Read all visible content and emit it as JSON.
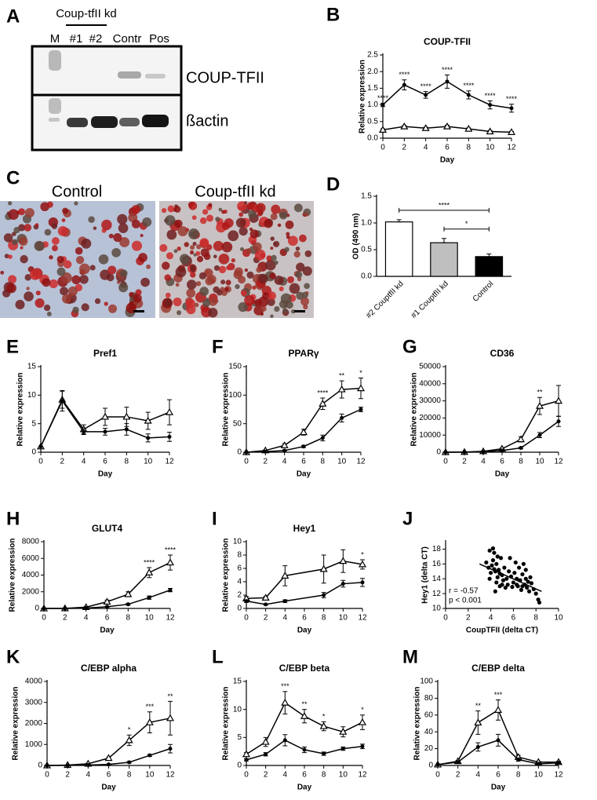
{
  "blot": {
    "panel": "A",
    "group_label": "Coup-tfII kd",
    "lanes": [
      "M",
      "#1",
      "#2",
      "Contr",
      "Pos"
    ],
    "bands": [
      "COUP-TFII",
      "ßactin"
    ]
  },
  "micrographs": {
    "panel": "C",
    "labels": [
      "Control",
      "Coup-tfII kd"
    ]
  },
  "chart_data": [
    {
      "type": "line",
      "panel": "B",
      "title": "COUP-TFII",
      "xlabel": "Day",
      "ylabel": "Relative expression",
      "x": [
        0,
        2,
        4,
        6,
        8,
        10,
        12
      ],
      "xlim": [
        0,
        12
      ],
      "xticks": [
        0,
        2,
        4,
        6,
        8,
        10,
        12
      ],
      "ylim": [
        0,
        2.5
      ],
      "yticks": [
        {
          "value": 0,
          "label": "0.0"
        },
        0.5,
        {
          "value": 1,
          "label": "1.0"
        },
        1.5,
        {
          "value": 2,
          "label": "2.0"
        },
        2.5
      ],
      "series": [
        {
          "marker": "circle",
          "color": "#000000",
          "values": [
            1.0,
            1.6,
            1.3,
            1.7,
            1.3,
            1.0,
            0.9
          ],
          "errors": [
            0.05,
            0.15,
            0.1,
            0.2,
            0.12,
            0.12,
            0.12
          ]
        },
        {
          "marker": "triangle",
          "color": "#000000",
          "values": [
            0.25,
            0.35,
            0.3,
            0.35,
            0.28,
            0.2,
            0.18
          ],
          "errors": [
            0.03,
            0.03,
            0.03,
            0.04,
            0.03,
            0.03,
            0.02
          ]
        }
      ],
      "annotations": [
        {
          "x": 0,
          "text": "****"
        },
        {
          "x": 2,
          "text": "****"
        },
        {
          "x": 4,
          "text": "****"
        },
        {
          "x": 6,
          "text": "****"
        },
        {
          "x": 8,
          "text": "****"
        },
        {
          "x": 10,
          "text": "****"
        },
        {
          "x": 12,
          "text": "****"
        }
      ]
    },
    {
      "type": "bar",
      "panel": "D",
      "ylabel": "OD (490 nm)",
      "categories": [
        "#2 CouptfII kd",
        "#1 CouptfII kd",
        "Control"
      ],
      "values": [
        1.02,
        0.63,
        0.37
      ],
      "errors": [
        0.04,
        0.08,
        0.05
      ],
      "colors": [
        "#ffffff",
        "#bfbfbf",
        "#000000"
      ],
      "ylim": [
        0,
        1.5
      ],
      "yticks": [
        {
          "value": 0,
          "label": "0.0"
        },
        0.5,
        {
          "value": 1,
          "label": "1.0"
        },
        1.5
      ],
      "comparisons": [
        {
          "between": [
            "#2 CouptfII kd",
            "Control"
          ],
          "text": "****"
        },
        {
          "between": [
            "#1 CouptfII kd",
            "Control"
          ],
          "text": "*"
        }
      ]
    },
    {
      "type": "line",
      "panel": "E",
      "title": "Pref1",
      "xlabel": "Day",
      "ylabel": "Relative expression",
      "x": [
        0,
        2,
        4,
        6,
        8,
        10,
        12
      ],
      "xlim": [
        0,
        12
      ],
      "xticks": [
        0,
        2,
        4,
        6,
        8,
        10,
        12
      ],
      "ylim": [
        0,
        15
      ],
      "yticks": [
        0,
        5,
        10,
        15
      ],
      "series": [
        {
          "marker": "triangle",
          "color": "#000000",
          "values": [
            1,
            9.2,
            4,
            6.2,
            6.2,
            5.5,
            7
          ],
          "errors": [
            0,
            1.5,
            0.8,
            1.5,
            1.7,
            1.5,
            2.2
          ]
        },
        {
          "marker": "circle",
          "color": "#000000",
          "values": [
            1,
            9,
            3.6,
            3.6,
            4,
            2.5,
            2.7
          ],
          "errors": [
            0,
            1.8,
            0.5,
            0.6,
            1,
            0.7,
            0.8
          ]
        }
      ],
      "annotations": []
    },
    {
      "type": "line",
      "panel": "F",
      "title": "PPARγ",
      "xlabel": "Day",
      "ylabel": "Relative expression",
      "x": [
        0,
        2,
        4,
        6,
        8,
        10,
        12
      ],
      "xlim": [
        0,
        12
      ],
      "xticks": [
        0,
        2,
        4,
        6,
        8,
        10,
        12
      ],
      "ylim": [
        0,
        150
      ],
      "yticks": [
        0,
        50,
        100,
        150
      ],
      "series": [
        {
          "marker": "triangle",
          "color": "#000000",
          "values": [
            0,
            3,
            12,
            35,
            85,
            110,
            112
          ],
          "errors": [
            0,
            1,
            3,
            5,
            10,
            15,
            18
          ]
        },
        {
          "marker": "circle",
          "color": "#000000",
          "values": [
            0,
            1,
            3,
            10,
            25,
            60,
            75
          ],
          "errors": [
            0,
            0.5,
            1,
            2,
            5,
            7,
            4
          ]
        }
      ],
      "annotations": [
        {
          "x": 8,
          "text": "****"
        },
        {
          "x": 10,
          "text": "**"
        },
        {
          "x": 12,
          "text": "*"
        }
      ]
    },
    {
      "type": "line",
      "panel": "G",
      "title": "CD36",
      "xlabel": "Day",
      "ylabel": "Relative expression",
      "x": [
        0,
        2,
        4,
        6,
        8,
        10,
        12
      ],
      "xlim": [
        0,
        12
      ],
      "xticks": [
        0,
        2,
        4,
        6,
        8,
        10,
        12
      ],
      "ylim": [
        0,
        50000
      ],
      "yticks": [
        0,
        10000,
        20000,
        30000,
        40000,
        50000
      ],
      "series": [
        {
          "marker": "triangle",
          "color": "#000000",
          "values": [
            0,
            100,
            500,
            2000,
            7500,
            27000,
            30000
          ],
          "errors": [
            0,
            100,
            300,
            500,
            1500,
            5000,
            9000
          ]
        },
        {
          "marker": "circle",
          "color": "#000000",
          "values": [
            0,
            50,
            200,
            1000,
            2500,
            10000,
            18000
          ],
          "errors": [
            0,
            50,
            100,
            300,
            500,
            1500,
            3000
          ]
        }
      ],
      "annotations": [
        {
          "x": 10,
          "text": "**"
        }
      ]
    },
    {
      "type": "line",
      "panel": "H",
      "title": "GLUT4",
      "xlabel": "Day",
      "ylabel": "Relative expression",
      "x": [
        0,
        2,
        4,
        6,
        8,
        10,
        12
      ],
      "xlim": [
        0,
        12
      ],
      "xticks": [
        0,
        2,
        4,
        6,
        8,
        10,
        12
      ],
      "ylim": [
        0,
        8000
      ],
      "yticks": [
        0,
        2000,
        4000,
        6000,
        8000
      ],
      "series": [
        {
          "marker": "triangle",
          "color": "#000000",
          "values": [
            0,
            10,
            150,
            800,
            1700,
            4300,
            5500
          ],
          "errors": [
            0,
            10,
            50,
            200,
            300,
            600,
            900
          ]
        },
        {
          "marker": "circle",
          "color": "#000000",
          "values": [
            0,
            5,
            50,
            200,
            500,
            1300,
            2200
          ],
          "errors": [
            0,
            5,
            20,
            50,
            100,
            200,
            200
          ]
        }
      ],
      "annotations": [
        {
          "x": 10,
          "text": "****"
        },
        {
          "x": 12,
          "text": "****"
        }
      ]
    },
    {
      "type": "line",
      "panel": "I",
      "title": "Hey1",
      "xlabel": "Day",
      "ylabel": "Relative expression",
      "x": [
        0,
        2,
        4,
        8,
        10,
        12
      ],
      "xlim": [
        0,
        12
      ],
      "xticks": [
        0,
        2,
        4,
        6,
        8,
        10,
        12
      ],
      "ylim": [
        0,
        10
      ],
      "yticks": [
        0,
        2,
        4,
        6,
        8,
        10
      ],
      "series": [
        {
          "marker": "triangle",
          "color": "#000000",
          "values": [
            1.5,
            1.6,
            4.9,
            5.9,
            7.1,
            6.6
          ],
          "errors": [
            0.3,
            0.2,
            1.5,
            2.1,
            1.7,
            0.7
          ]
        },
        {
          "marker": "circle",
          "color": "#000000",
          "values": [
            1.1,
            0.6,
            1.1,
            2.0,
            3.7,
            3.9
          ],
          "errors": [
            0.2,
            0.1,
            0.2,
            0.4,
            0.5,
            0.6
          ]
        }
      ],
      "annotations": [
        {
          "x": 12,
          "text": "*"
        }
      ]
    },
    {
      "type": "scatter",
      "panel": "J",
      "xlabel": "CoupTFII (delta CT)",
      "ylabel": "Hey1 (delta CT)",
      "xlim": [
        0,
        10
      ],
      "xticks": [
        0,
        2,
        4,
        6,
        8,
        10
      ],
      "ylim": [
        10,
        19
      ],
      "yticks": [
        10,
        12,
        14,
        16,
        18
      ],
      "color": "#000000",
      "x": [
        3.6,
        3.8,
        3.9,
        4.0,
        4.1,
        4.2,
        4.2,
        4.3,
        4.4,
        4.5,
        4.5,
        4.6,
        4.7,
        4.8,
        4.9,
        5.0,
        5.1,
        5.2,
        5.3,
        5.4,
        5.5,
        5.6,
        5.8,
        5.9,
        6.0,
        6.1,
        6.2,
        6.3,
        6.4,
        6.5,
        6.6,
        6.7,
        6.8,
        6.9,
        7.0,
        7.1,
        7.2,
        7.3,
        7.4,
        7.5,
        7.6,
        7.8,
        8.0,
        8.2,
        8.3,
        3.9,
        4.3,
        4.6,
        5.0,
        5.7,
        6.3,
        6.8,
        7.1,
        4.4,
        4.8
      ],
      "values": [
        16.2,
        15.5,
        17.8,
        14.8,
        15.8,
        18.1,
        16.5,
        17.5,
        15.0,
        13.5,
        16.0,
        14.2,
        15.2,
        13.0,
        16.8,
        14.5,
        13.8,
        15.5,
        12.8,
        14.0,
        13.2,
        15.0,
        14.3,
        12.9,
        13.5,
        14.8,
        16.2,
        14.0,
        13.0,
        15.5,
        13.8,
        12.5,
        14.6,
        16.0,
        13.2,
        14.0,
        12.8,
        13.6,
        12.3,
        14.2,
        13.4,
        12.6,
        12.0,
        11.2,
        10.8,
        14.0,
        15.3,
        17.0,
        13.2,
        16.8,
        13.2,
        13.0,
        15.2,
        12.3,
        14.7
      ],
      "fit": {
        "x": [
          3.0,
          8.5
        ],
        "values": [
          16.0,
          12.3
        ]
      },
      "annotations": [
        "r = -0.57",
        "p < 0.001"
      ]
    },
    {
      "type": "line",
      "panel": "K",
      "title": "C/EBP alpha",
      "xlabel": "Day",
      "ylabel": "Relative expression",
      "x": [
        0,
        2,
        4,
        6,
        8,
        10,
        12
      ],
      "xlim": [
        0,
        12
      ],
      "xticks": [
        0,
        2,
        4,
        6,
        8,
        10,
        12
      ],
      "ylim": [
        0,
        4000
      ],
      "yticks": [
        0,
        1000,
        2000,
        3000,
        4000
      ],
      "series": [
        {
          "marker": "triangle",
          "color": "#000000",
          "values": [
            0,
            20,
            80,
            350,
            1200,
            2050,
            2250
          ],
          "errors": [
            0,
            10,
            30,
            50,
            250,
            500,
            800
          ]
        },
        {
          "marker": "circle",
          "color": "#000000",
          "values": [
            0,
            5,
            20,
            50,
            150,
            480,
            800
          ],
          "errors": [
            0,
            5,
            10,
            20,
            40,
            50,
            200
          ]
        }
      ],
      "annotations": [
        {
          "x": 8,
          "text": "*"
        },
        {
          "x": 10,
          "text": "***"
        },
        {
          "x": 12,
          "text": "**"
        }
      ]
    },
    {
      "type": "line",
      "panel": "L",
      "title": "C/EBP beta",
      "xlabel": "Day",
      "ylabel": "Relative expression",
      "x": [
        0,
        2,
        4,
        6,
        8,
        10,
        12
      ],
      "xlim": [
        0,
        12
      ],
      "xticks": [
        0,
        2,
        4,
        6,
        8,
        10,
        12
      ],
      "ylim": [
        0,
        15
      ],
      "yticks": [
        0,
        5,
        10,
        15
      ],
      "series": [
        {
          "marker": "triangle",
          "color": "#000000",
          "values": [
            2,
            4.2,
            11.2,
            8.8,
            7,
            6,
            7.7
          ],
          "errors": [
            0.3,
            0.8,
            2,
            1.2,
            0.8,
            0.9,
            1.3
          ]
        },
        {
          "marker": "circle",
          "color": "#000000",
          "values": [
            1,
            2,
            4.5,
            2.8,
            2.1,
            3,
            3.4
          ],
          "errors": [
            0.2,
            0.3,
            1,
            0.5,
            0.3,
            0.3,
            0.4
          ]
        }
      ],
      "annotations": [
        {
          "x": 4,
          "text": "***"
        },
        {
          "x": 6,
          "text": "**"
        },
        {
          "x": 8,
          "text": "*"
        },
        {
          "x": 12,
          "text": "*"
        }
      ]
    },
    {
      "type": "line",
      "panel": "M",
      "title": "C/EBP delta",
      "xlabel": "Day",
      "ylabel": "Relative expression",
      "x": [
        0,
        2,
        4,
        6,
        8,
        10,
        12
      ],
      "xlim": [
        0,
        12
      ],
      "xticks": [
        0,
        2,
        4,
        6,
        8,
        10,
        12
      ],
      "ylim": [
        0,
        100
      ],
      "yticks": [
        0,
        20,
        40,
        60,
        80,
        100
      ],
      "series": [
        {
          "marker": "triangle",
          "color": "#000000",
          "values": [
            1,
            5,
            51,
            66,
            10,
            4,
            4
          ],
          "errors": [
            0,
            1,
            14,
            12,
            2,
            1,
            1
          ]
        },
        {
          "marker": "circle",
          "color": "#000000",
          "values": [
            1,
            4,
            22,
            30,
            7,
            2,
            3
          ],
          "errors": [
            0,
            1,
            5,
            7,
            2,
            1,
            1
          ]
        }
      ],
      "annotations": [
        {
          "x": 4,
          "text": "**"
        },
        {
          "x": 6,
          "text": "***"
        }
      ]
    }
  ]
}
